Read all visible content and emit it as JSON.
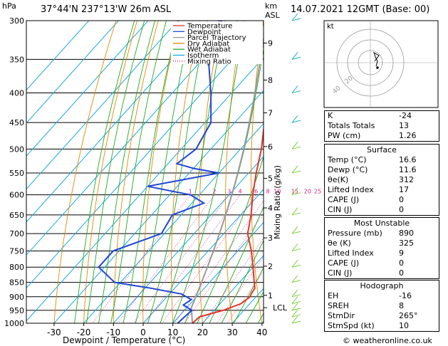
{
  "header": {
    "pressure_unit": "hPa",
    "location": "37°44'N  237°13'W  26m  ASL",
    "height_unit": "km",
    "height_unit2": "ASL",
    "datetime": "14.07.2021  12GMT  (Base: 00)"
  },
  "chart_data": {
    "type": "skew-t",
    "xlabel": "Dewpoint / Temperature (°C)",
    "ylabel_left": "hPa",
    "ylabel_right": "Mixing Ratio (g/kg)",
    "pressure_levels": [
      300,
      350,
      400,
      450,
      500,
      550,
      600,
      650,
      700,
      750,
      800,
      850,
      900,
      950,
      1000
    ],
    "x_ticks": [
      -30,
      -20,
      -10,
      0,
      10,
      20,
      30,
      40
    ],
    "height_ticks": [
      {
        "km": "1",
        "p": 895
      },
      {
        "km": "2",
        "p": 797
      },
      {
        "km": "3",
        "p": 712
      },
      {
        "km": "4",
        "p": 632
      },
      {
        "km": "5",
        "p": 562
      },
      {
        "km": "6",
        "p": 495
      },
      {
        "km": "7",
        "p": 433
      },
      {
        "km": "8",
        "p": 380
      },
      {
        "km": "9",
        "p": 328
      }
    ],
    "lcl_label": "LCL",
    "lcl_p": 940,
    "mixing_ratio_labels": [
      "1",
      "2",
      "3",
      "4",
      "6",
      "8",
      "10",
      "15",
      "20",
      "25"
    ],
    "mixing_ratio_values": [
      1,
      2,
      3,
      4,
      6,
      8,
      10,
      15,
      20,
      25
    ],
    "temperature": {
      "p": [
        1000,
        975,
        950,
        925,
        900,
        890,
        870,
        850,
        800,
        750,
        700,
        650,
        600,
        550,
        500,
        450,
        400,
        350,
        300
      ],
      "t": [
        16.6,
        17.0,
        23.0,
        27.0,
        28.0,
        27.5,
        27.0,
        25.0,
        20.0,
        14.5,
        8.0,
        3.5,
        -2.0,
        -7.5,
        -13.0,
        -20.0,
        -26.0,
        -34.0,
        -43.0
      ]
    },
    "dewpoint": {
      "p": [
        1000,
        975,
        950,
        930,
        910,
        890,
        870,
        860,
        850,
        800,
        750,
        700,
        650,
        620,
        600,
        580,
        550,
        540,
        530,
        500,
        450,
        400,
        350,
        320,
        310,
        300
      ],
      "td": [
        11.6,
        12.0,
        12.5,
        8.0,
        9.0,
        4.0,
        -8.0,
        -15.0,
        -22.0,
        -32.0,
        -32.0,
        -21.0,
        -23.0,
        -16.0,
        -23.0,
        -40.0,
        -20.0,
        -30.0,
        -37.0,
        -35.0,
        -38.0,
        -47.0,
        -58.0,
        -62.0,
        -72.0,
        -65.0
      ]
    },
    "legend": [
      {
        "name": "Temperature",
        "color": "#e8312a",
        "dash": "solid"
      },
      {
        "name": "Dewpoint",
        "color": "#2046d8",
        "dash": "solid"
      },
      {
        "name": "Parcel Trajectory",
        "color": "#9a9a9a",
        "dash": "solid"
      },
      {
        "name": "Dry Adiabat",
        "color": "#e08a00",
        "dash": "solid"
      },
      {
        "name": "Wet Adiabat",
        "color": "#22a822",
        "dash": "solid"
      },
      {
        "name": "Isotherm",
        "color": "#18a8e0",
        "dash": "solid"
      },
      {
        "name": "Mixing Ratio",
        "color": "#d0208c",
        "dash": "dotted"
      }
    ]
  },
  "hodograph": {
    "label": "kt",
    "ring_labels": [
      "20",
      "40"
    ]
  },
  "indices": [
    {
      "label": "K",
      "value": "-24"
    },
    {
      "label": "Totals Totals",
      "value": "13"
    },
    {
      "label": "PW (cm)",
      "value": "1.26"
    }
  ],
  "surface": {
    "title": "Surface",
    "rows": [
      {
        "label": "Temp (°C)",
        "value": "16.6"
      },
      {
        "label": "Dewp (°C)",
        "value": "11.6"
      },
      {
        "label": "θe(K)",
        "value": "312"
      },
      {
        "label": "Lifted Index",
        "value": "17"
      },
      {
        "label": "CAPE (J)",
        "value": "0"
      },
      {
        "label": "CIN (J)",
        "value": "0"
      }
    ]
  },
  "most_unstable": {
    "title": "Most Unstable",
    "rows": [
      {
        "label": "Pressure (mb)",
        "value": "890"
      },
      {
        "label": "θe (K)",
        "value": "325"
      },
      {
        "label": "Lifted Index",
        "value": "9"
      },
      {
        "label": "CAPE (J)",
        "value": "0"
      },
      {
        "label": "CIN (J)",
        "value": "0"
      }
    ]
  },
  "hodo_table": {
    "title": "Hodograph",
    "rows": [
      {
        "label": "EH",
        "value": "-16"
      },
      {
        "label": "SREH",
        "value": "8"
      },
      {
        "label": "StmDir",
        "value": "265°"
      },
      {
        "label": "StmSpd (kt)",
        "value": "10"
      }
    ]
  },
  "footer": {
    "copyright": "© weatheronline.co.uk"
  },
  "colors": {
    "temperature": "#e8312a",
    "dewpoint": "#2046d8",
    "parcel": "#9a9a9a",
    "dry_adiabat": "#e08a00",
    "wet_adiabat": "#22a822",
    "isotherm": "#18a8e0",
    "mixing_ratio": "#d0208c",
    "wind_barb": "#20b0b0"
  }
}
